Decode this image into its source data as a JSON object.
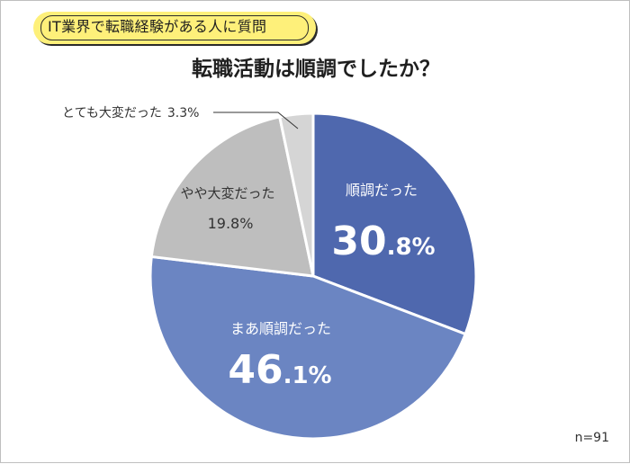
{
  "header": {
    "badge_text": "IT業界で転職経験がある人に質問",
    "title": "転職活動は順調でしたか？",
    "sample_size": "n=91"
  },
  "chart_data": {
    "type": "pie",
    "title": "転職活動は順調でしたか？",
    "start_angle_deg": 0,
    "direction": "clockwise",
    "slices": [
      {
        "label": "順調だった",
        "value": 30.8,
        "value_text": "30.8%",
        "color": "#4f68ae",
        "label_color": "#ffffff"
      },
      {
        "label": "まあ順調だった",
        "value": 46.1,
        "value_text": "46.1%",
        "color": "#6b85c2",
        "label_color": "#ffffff"
      },
      {
        "label": "やや大変だった",
        "value": 19.8,
        "value_text": "19.8%",
        "color": "#bebebe",
        "label_color": "#333333"
      },
      {
        "label": "とても大変だった",
        "value": 3.3,
        "value_text": "3.3%",
        "color": "#d5d5d5",
        "label_color": "#333333"
      }
    ]
  }
}
